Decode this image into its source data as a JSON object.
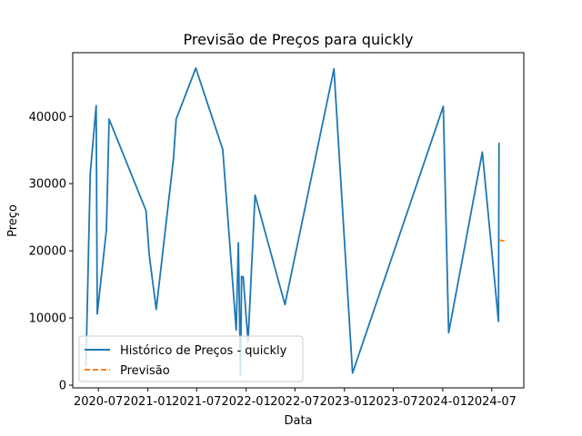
{
  "chart_data": {
    "type": "line",
    "title": "Previsão de Preços para quickly",
    "xlabel": "Data",
    "ylabel": "Preço",
    "xlim": [
      "2020-03-28",
      "2024-10-28"
    ],
    "ylim": [
      -400,
      49500
    ],
    "x_ticks": [
      "2020-07-01",
      "2021-01-01",
      "2021-07-01",
      "2022-01-01",
      "2022-07-01",
      "2023-01-01",
      "2023-07-01",
      "2024-01-01",
      "2024-07-01"
    ],
    "x_tick_labels": [
      "2020-07",
      "2021-01",
      "2021-07",
      "2022-01",
      "2022-07",
      "2023-01",
      "2023-07",
      "2024-01",
      "2024-07"
    ],
    "y_ticks": [
      0,
      10000,
      20000,
      30000,
      40000
    ],
    "y_tick_labels": [
      "0",
      "10000",
      "20000",
      "30000",
      "40000"
    ],
    "grid": false,
    "legend_position": "lower-left",
    "series": [
      {
        "name": "Histórico de Preços - quickly",
        "color": "#1f77b4",
        "style": "solid",
        "points": [
          {
            "x": "2020-05-16",
            "y": 2800
          },
          {
            "x": "2020-06-01",
            "y": 31500
          },
          {
            "x": "2020-06-23",
            "y": 41600
          },
          {
            "x": "2020-06-27",
            "y": 10600
          },
          {
            "x": "2020-07-31",
            "y": 23100
          },
          {
            "x": "2020-08-10",
            "y": 39600
          },
          {
            "x": "2020-12-25",
            "y": 26000
          },
          {
            "x": "2021-01-06",
            "y": 19400
          },
          {
            "x": "2021-02-01",
            "y": 11300
          },
          {
            "x": "2021-04-06",
            "y": 33700
          },
          {
            "x": "2021-04-16",
            "y": 39600
          },
          {
            "x": "2021-06-28",
            "y": 47200
          },
          {
            "x": "2021-10-06",
            "y": 35100
          },
          {
            "x": "2021-11-25",
            "y": 8200
          },
          {
            "x": "2021-12-03",
            "y": 21200
          },
          {
            "x": "2021-12-11",
            "y": 1500
          },
          {
            "x": "2021-12-15",
            "y": 16200
          },
          {
            "x": "2021-12-21",
            "y": 16100
          },
          {
            "x": "2022-01-08",
            "y": 6500
          },
          {
            "x": "2022-02-03",
            "y": 28300
          },
          {
            "x": "2022-05-25",
            "y": 12000
          },
          {
            "x": "2022-11-23",
            "y": 47100
          },
          {
            "x": "2023-01-31",
            "y": 1800
          },
          {
            "x": "2024-01-03",
            "y": 41500
          },
          {
            "x": "2024-01-23",
            "y": 7800
          },
          {
            "x": "2024-05-27",
            "y": 34700
          },
          {
            "x": "2024-07-26",
            "y": 9500
          },
          {
            "x": "2024-07-28",
            "y": 36100
          }
        ]
      },
      {
        "name": "Previsão",
        "color": "#ff7f0e",
        "style": "dashed",
        "points": [
          {
            "x": "2024-07-28",
            "y": 21600
          },
          {
            "x": "2024-08-10",
            "y": 21500
          },
          {
            "x": "2024-08-22",
            "y": 21450
          }
        ]
      }
    ]
  }
}
